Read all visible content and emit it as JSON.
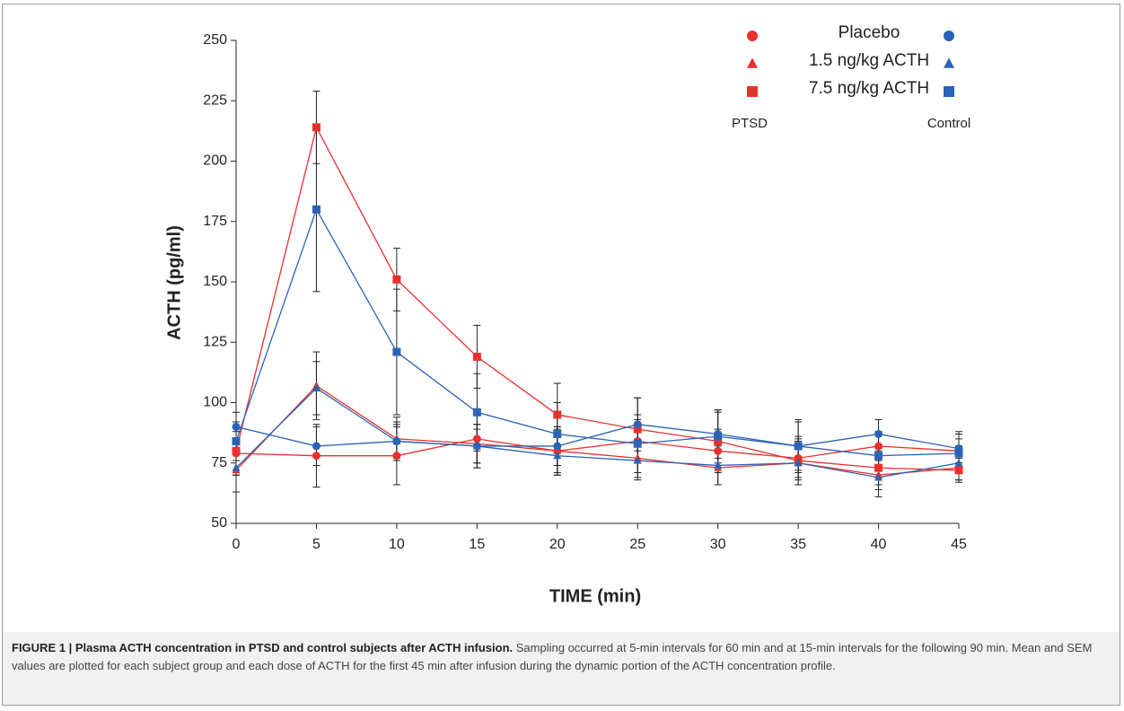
{
  "chart_data": {
    "type": "line",
    "y_label": "ACTH  (pg/ml)",
    "x_label": "TIME (min)",
    "x": [
      0,
      5,
      10,
      15,
      20,
      25,
      30,
      35,
      40,
      45
    ],
    "xlim": [
      0,
      45
    ],
    "xticks": [
      0,
      5,
      10,
      15,
      20,
      25,
      30,
      35,
      40,
      45
    ],
    "ylim": [
      50,
      250
    ],
    "yticks": [
      50,
      75,
      100,
      125,
      150,
      175,
      200,
      225,
      250
    ],
    "legend_rows": [
      "Placebo",
      "1.5 ng/kg ACTH",
      "7.5 ng/kg ACTH"
    ],
    "groups": [
      {
        "name": "PTSD",
        "color": "#e8312f",
        "series": [
          {
            "marker": "circle",
            "values": [
              79,
              78,
              78,
              85,
              80,
              84,
              80,
              77,
              82,
              80
            ],
            "errors": [
              9,
              13,
              12,
              12,
              10,
              9,
              9,
              8,
              6,
              5
            ]
          },
          {
            "marker": "triangle",
            "values": [
              72,
              107,
              85,
              83,
              80,
              77,
              73,
              75,
              70,
              73
            ],
            "errors": [
              9,
              14,
              9,
              8,
              9,
              8,
              7,
              7,
              6,
              5
            ]
          },
          {
            "marker": "square",
            "values": [
              80,
              214,
              151,
              119,
              95,
              89,
              84,
              76,
              73,
              72
            ],
            "errors": [
              10,
              15,
              13,
              13,
              13,
              13,
              12,
              10,
              7,
              5
            ]
          }
        ]
      },
      {
        "name": "Control",
        "color": "#2b63b6",
        "series": [
          {
            "marker": "circle",
            "values": [
              90,
              82,
              84,
              82,
              82,
              91,
              87,
              82,
              87,
              81
            ],
            "errors": [
              6,
              8,
              7,
              7,
              8,
              11,
              10,
              11,
              6,
              7
            ]
          },
          {
            "marker": "triangle",
            "values": [
              73,
              106,
              84,
              82,
              78,
              76,
              74,
              75,
              69,
              75
            ],
            "errors": [
              10,
              11,
              8,
              9,
              8,
              8,
              8,
              9,
              8,
              7
            ]
          },
          {
            "marker": "square",
            "values": [
              84,
              180,
              121,
              96,
              87,
              83,
              86,
              82,
              78,
              79
            ],
            "errors": [
              8,
              34,
              26,
              16,
              13,
              12,
              11,
              10,
              9,
              8
            ]
          }
        ]
      }
    ]
  },
  "caption": {
    "title": "FIGURE 1 | Plasma ACTH concentration in PTSD and control subjects after ACTH infusion.",
    "text": "Sampling occurred at 5-min intervals for 60 min and at 15-min intervals for the following 90 min. Mean and SEM values are plotted for each subject group and each dose of ACTH for the first 45 min after infusion during the dynamic portion of the ACTH concentration profile."
  }
}
